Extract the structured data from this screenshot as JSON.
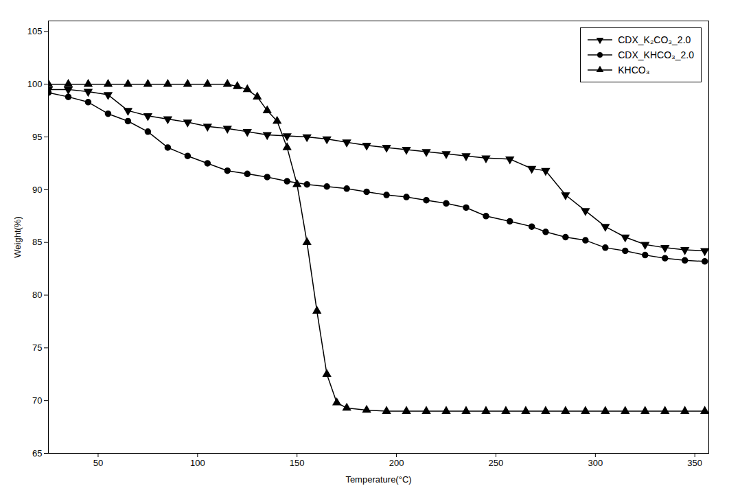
{
  "chart_data": {
    "type": "line",
    "xlabel": "Temperature(°C)",
    "ylabel": "Weight(%)",
    "xlim": [
      25,
      357
    ],
    "ylim": [
      65,
      106
    ],
    "xticks": [
      50,
      100,
      150,
      200,
      250,
      300,
      350
    ],
    "yticks": [
      65,
      70,
      75,
      80,
      85,
      90,
      95,
      100,
      105
    ],
    "legend": "upper right",
    "series": [
      {
        "name": "CDX_K₂CO₃_2.0",
        "color": "#000000",
        "marker": "triangle-down",
        "x": [
          25,
          35,
          45,
          55,
          65,
          75,
          85,
          95,
          105,
          115,
          125,
          135,
          145,
          155,
          165,
          175,
          185,
          195,
          205,
          215,
          225,
          235,
          245,
          257,
          268,
          275,
          285,
          295,
          305,
          315,
          325,
          335,
          345,
          355
        ],
        "values": [
          99.5,
          99.5,
          99.3,
          99.0,
          97.5,
          97.0,
          96.7,
          96.4,
          96.0,
          95.8,
          95.5,
          95.2,
          95.1,
          95.0,
          94.8,
          94.5,
          94.2,
          94.0,
          93.8,
          93.6,
          93.4,
          93.2,
          93.0,
          92.9,
          92.0,
          91.8,
          89.5,
          88.0,
          86.5,
          85.5,
          84.8,
          84.5,
          84.3,
          84.2
        ]
      },
      {
        "name": "CDX_KHCO₃_2.0",
        "color": "#000000",
        "marker": "circle",
        "x": [
          25,
          35,
          45,
          55,
          65,
          75,
          85,
          95,
          105,
          115,
          125,
          135,
          145,
          155,
          165,
          175,
          185,
          195,
          205,
          215,
          225,
          235,
          245,
          257,
          268,
          275,
          285,
          295,
          305,
          315,
          325,
          335,
          345,
          355
        ],
        "values": [
          99.2,
          98.8,
          98.3,
          97.2,
          96.5,
          95.5,
          94.0,
          93.2,
          92.5,
          91.8,
          91.5,
          91.2,
          90.8,
          90.5,
          90.3,
          90.1,
          89.8,
          89.5,
          89.3,
          89.0,
          88.7,
          88.3,
          87.5,
          87.0,
          86.5,
          86.0,
          85.5,
          85.2,
          84.5,
          84.2,
          83.8,
          83.5,
          83.3,
          83.2
        ]
      },
      {
        "name": "KHCO₃",
        "color": "#000000",
        "marker": "triangle-up",
        "x": [
          25,
          35,
          45,
          55,
          65,
          75,
          85,
          95,
          105,
          115,
          120,
          125,
          130,
          135,
          140,
          145,
          150,
          155,
          160,
          165,
          170,
          175,
          185,
          195,
          205,
          215,
          225,
          235,
          245,
          255,
          265,
          275,
          285,
          295,
          305,
          315,
          325,
          335,
          345,
          355
        ],
        "values": [
          100.0,
          100.0,
          100.0,
          100.0,
          100.0,
          100.0,
          100.0,
          100.0,
          100.0,
          100.0,
          99.8,
          99.5,
          98.8,
          97.5,
          96.5,
          94.0,
          90.5,
          85.0,
          78.5,
          72.5,
          69.8,
          69.3,
          69.1,
          69.0,
          69.0,
          69.0,
          69.0,
          69.0,
          69.0,
          69.0,
          69.0,
          69.0,
          69.0,
          69.0,
          69.0,
          69.0,
          69.0,
          69.0,
          69.0,
          69.0
        ]
      }
    ]
  }
}
